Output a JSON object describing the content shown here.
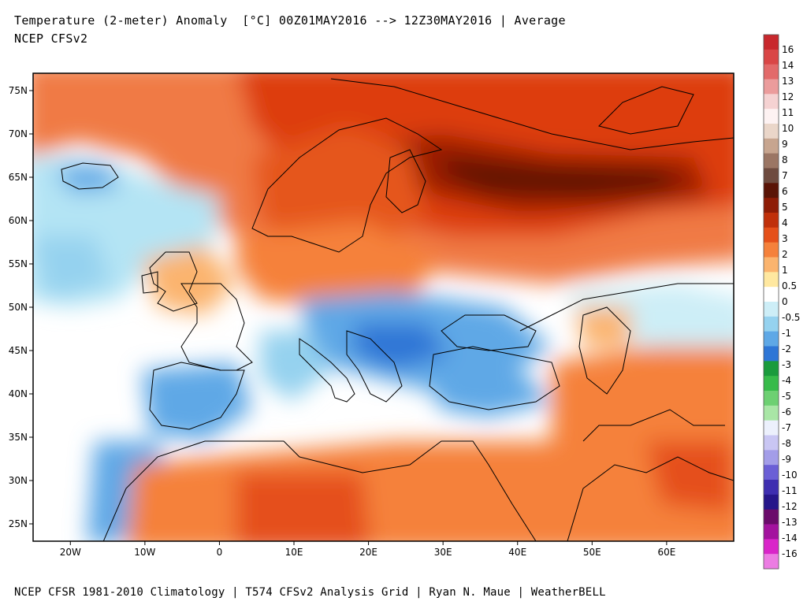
{
  "header": {
    "title": "Temperature (2-meter) Anomaly  [°C] 00Z01MAY2016 --> 12Z30MAY2016 | Average",
    "subtitle": "NCEP CFSv2"
  },
  "footer": {
    "credits": "NCEP CFSR 1981-2010 Climatology | T574 CFSv2 Analysis Grid | Ryan N. Maue | WeatherBELL"
  },
  "map": {
    "region": "Europe, North Africa, Middle East",
    "lat_range": [
      23,
      77
    ],
    "lon_range": [
      -25,
      69
    ],
    "lat_ticks": [
      {
        "value": 75,
        "label": "75N"
      },
      {
        "value": 70,
        "label": "70N"
      },
      {
        "value": 65,
        "label": "65N"
      },
      {
        "value": 60,
        "label": "60N"
      },
      {
        "value": 55,
        "label": "55N"
      },
      {
        "value": 50,
        "label": "50N"
      },
      {
        "value": 45,
        "label": "45N"
      },
      {
        "value": 40,
        "label": "40N"
      },
      {
        "value": 35,
        "label": "35N"
      },
      {
        "value": 30,
        "label": "30N"
      },
      {
        "value": 25,
        "label": "25N"
      }
    ],
    "lon_ticks": [
      {
        "value": -20,
        "label": "20W"
      },
      {
        "value": -10,
        "label": "10W"
      },
      {
        "value": 0,
        "label": "0"
      },
      {
        "value": 10,
        "label": "10E"
      },
      {
        "value": 20,
        "label": "20E"
      },
      {
        "value": 30,
        "label": "30E"
      },
      {
        "value": 40,
        "label": "40E"
      },
      {
        "value": 50,
        "label": "50E"
      },
      {
        "value": 60,
        "label": "60E"
      }
    ]
  },
  "colorbar": {
    "labels": [
      "16",
      "14",
      "13",
      "12",
      "11",
      "10",
      "9",
      "8",
      "7",
      "6",
      "5",
      "4",
      "3",
      "2",
      "1",
      "0.5",
      "0",
      "-0.5",
      "-1",
      "-2",
      "-3",
      "-4",
      "-5",
      "-6",
      "-7",
      "-8",
      "-9",
      "-10",
      "-11",
      "-12",
      "-13",
      "-14",
      "-16"
    ],
    "colors": [
      "#c8282d",
      "#d94646",
      "#e26a6a",
      "#eb9c9c",
      "#f5d2d2",
      "#fdf2f2",
      "#ead6c9",
      "#c7a58f",
      "#9b7664",
      "#6e4b3f",
      "#5a1406",
      "#8e1c06",
      "#c0300a",
      "#e5501a",
      "#f5813b",
      "#fbb46e",
      "#ffe8a0",
      "#ffffff",
      "#cdeef7",
      "#95d2ef",
      "#5ea8e6",
      "#2e76d6",
      "#1a9b3c",
      "#37bb4a",
      "#6dd072",
      "#a9e6a6",
      "#ecf0fc",
      "#c9c6f3",
      "#a39de8",
      "#6b5fd6",
      "#3e2eb0",
      "#26168a",
      "#6b0b6b",
      "#a3139e",
      "#d925c9",
      "#ec7ce3"
    ],
    "boundaries": [
      16,
      14,
      13,
      12,
      11,
      10,
      9,
      8,
      7,
      6,
      5,
      4,
      3,
      2,
      1,
      0.5,
      0,
      -0.5,
      -1,
      -2,
      -3,
      -4,
      -5,
      -6,
      -7,
      -8,
      -9,
      -10,
      -11,
      -12,
      -13,
      -14,
      -16
    ]
  }
}
